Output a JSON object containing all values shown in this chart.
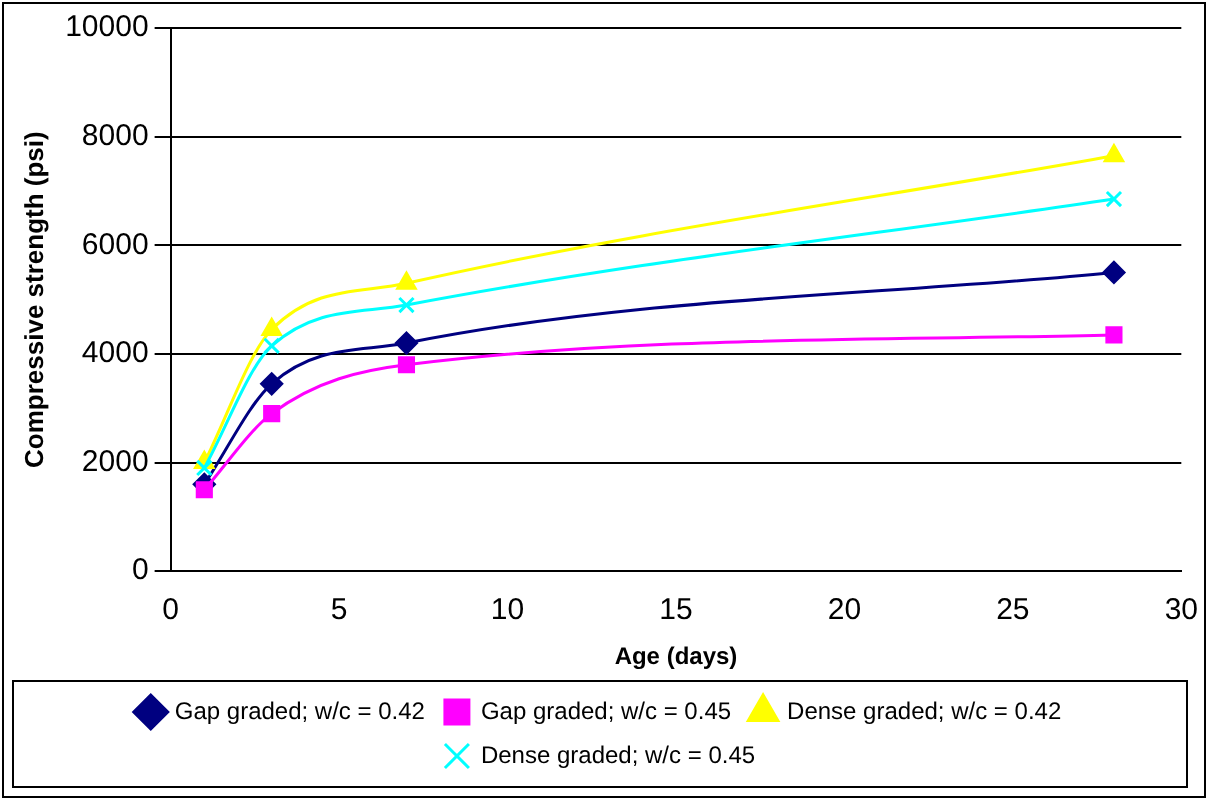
{
  "chart_data": {
    "type": "line",
    "xlabel": "Age (days)",
    "ylabel": "Compressive strength (psi)",
    "xlim": [
      0,
      30
    ],
    "xticks": [
      0,
      5,
      10,
      15,
      20,
      25,
      30
    ],
    "ylim": [
      0,
      10000
    ],
    "yticks": [
      0,
      2000,
      4000,
      6000,
      8000,
      10000
    ],
    "grid": "y",
    "legend": "bottom",
    "series": [
      {
        "name": "Gap graded; w/c = 0.42",
        "color": "#000080",
        "marker": "diamond",
        "x": [
          1,
          3,
          7,
          28
        ],
        "values": [
          1600,
          3450,
          4200,
          5500
        ]
      },
      {
        "name": "Gap graded; w/c = 0.45",
        "color": "#ff00ff",
        "marker": "square",
        "x": [
          1,
          3,
          7,
          28
        ],
        "values": [
          1500,
          2900,
          3800,
          4350
        ]
      },
      {
        "name": "Dense graded; w/c = 0.42",
        "color": "#ffff00",
        "marker": "triangle",
        "x": [
          1,
          3,
          7,
          28
        ],
        "values": [
          2000,
          4450,
          5300,
          7650
        ]
      },
      {
        "name": "Dense graded; w/c = 0.45",
        "color": "#00ffff",
        "marker": "cross",
        "x": [
          1,
          3,
          7,
          28
        ],
        "values": [
          1900,
          4150,
          4900,
          6850
        ]
      }
    ]
  }
}
